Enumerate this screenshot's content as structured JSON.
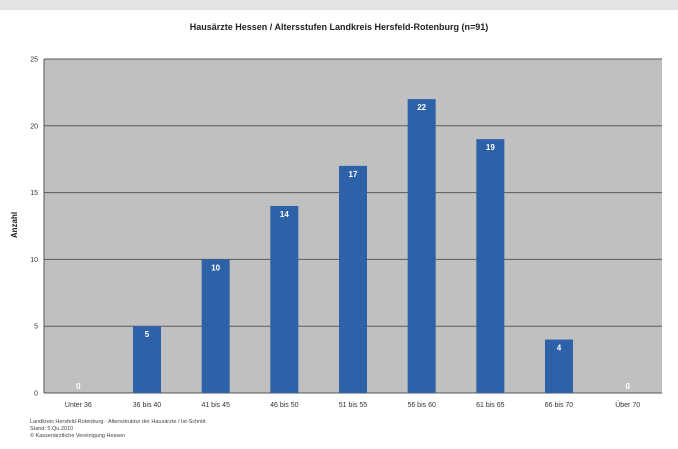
{
  "chart_data": {
    "type": "bar",
    "title": "Hausärzte Hessen / Altersstufen Landkreis Hersfeld-Rotenburg (n=91)",
    "ylabel": "Anzahl",
    "xlabel": "",
    "categories": [
      "Unter 36",
      "36 bis 40",
      "41 bis 45",
      "46 bis 50",
      "51 bis 55",
      "56 bis 60",
      "61 bis 65",
      "66 bis 70",
      "Über 70"
    ],
    "values": [
      0,
      5,
      10,
      14,
      17,
      22,
      19,
      4,
      0
    ],
    "ylim": [
      0,
      25
    ],
    "yticks": [
      0,
      5,
      10,
      15,
      20,
      25
    ],
    "grid": true,
    "colors": {
      "bar": "#2e62a8",
      "plot_bg": "#c0c0c0",
      "grid": "#5a5a5a"
    }
  },
  "footer": {
    "line1": "Landkreis Hersfeld-Rotenburg · Altersstruktur der Hausärzte / Ist-Schnitt",
    "line2": "Stand: 5.Qu.2010",
    "line3": "© Kassenärztliche Vereinigung Hessen"
  }
}
